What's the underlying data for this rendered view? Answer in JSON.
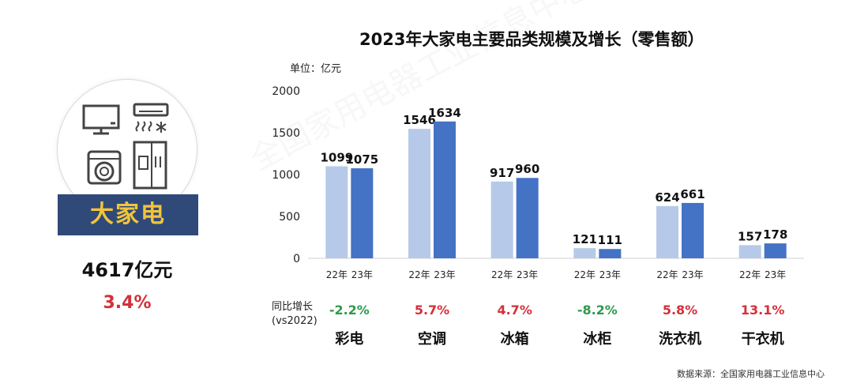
{
  "chart_title": "2023年大家电主要品类规模及增长（零售额）",
  "unit_label": "单位：亿元",
  "left_panel": {
    "banner": "大家电",
    "total": "4617亿元",
    "growth": "3.4%",
    "icons": [
      "tv-icon",
      "air-conditioner-icon",
      "washing-machine-icon",
      "refrigerator-icon"
    ]
  },
  "yoy_label": [
    "同比增长",
    "(vs2022)"
  ],
  "categories": [
    {
      "name": "彩电",
      "yoy": "-2.2%",
      "yoy_color": "#2c9a4d"
    },
    {
      "name": "空调",
      "yoy": "5.7%",
      "yoy_color": "#d4303a"
    },
    {
      "name": "冰箱",
      "yoy": "4.7%",
      "yoy_color": "#d4303a"
    },
    {
      "name": "冰柜",
      "yoy": "-8.2%",
      "yoy_color": "#2c9a4d"
    },
    {
      "name": "洗衣机",
      "yoy": "5.8%",
      "yoy_color": "#d4303a"
    },
    {
      "name": "干衣机",
      "yoy": "13.1%",
      "yoy_color": "#d4303a"
    }
  ],
  "source": "数据来源：全国家用电器工业信息中心",
  "watermark": "全国家用电器工业信息中心",
  "chart_data": {
    "type": "bar",
    "title": "2023年大家电主要品类规模及增长（零售额）",
    "ylabel": "单位：亿元",
    "ylim": [
      0,
      2000
    ],
    "yticks": [
      0,
      500,
      1000,
      1500,
      2000
    ],
    "categories": [
      "彩电",
      "空调",
      "冰箱",
      "冰柜",
      "洗衣机",
      "干衣机"
    ],
    "series": [
      {
        "name": "22年",
        "color": "#b6c9e8",
        "values": [
          1099,
          1546,
          917,
          121,
          624,
          157
        ]
      },
      {
        "name": "23年",
        "color": "#4472c4",
        "values": [
          1075,
          1634,
          960,
          111,
          661,
          178
        ]
      }
    ],
    "grid": false,
    "legend": "none"
  }
}
